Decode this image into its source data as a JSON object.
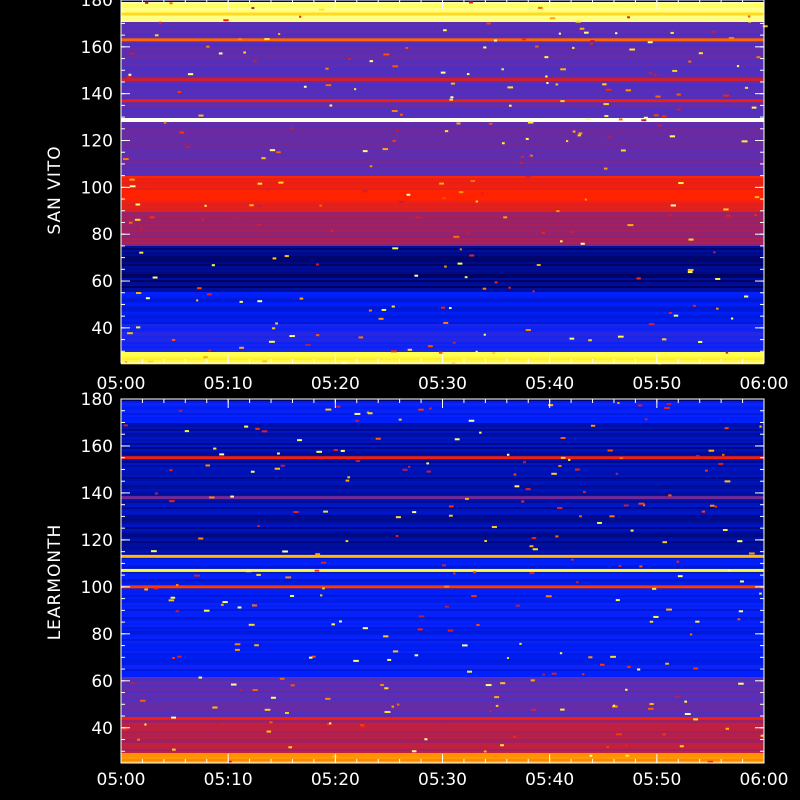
{
  "chart_data": [
    {
      "type": "heatmap",
      "station": "SAN VITO",
      "ylabel": "SAN VITO",
      "xlim": [
        "05:00",
        "06:00"
      ],
      "ylim": [
        25,
        180
      ],
      "xticks": [
        "05:00",
        "05:10",
        "05:20",
        "05:30",
        "05:40",
        "05:50",
        "06:00"
      ],
      "yticks": [
        40,
        60,
        80,
        100,
        120,
        140,
        160,
        180
      ],
      "colormap": [
        "#000050",
        "#0020ff",
        "#5030c0",
        "#a02060",
        "#ff2000",
        "#ffa000",
        "#ffff40",
        "#ffffff"
      ],
      "bands": [
        {
          "from": 25,
          "to": 30,
          "level": 0.85
        },
        {
          "from": 30,
          "to": 42,
          "level": 0.18
        },
        {
          "from": 42,
          "to": 56,
          "level": 0.12
        },
        {
          "from": 56,
          "to": 75,
          "level": 0.04
        },
        {
          "from": 75,
          "to": 90,
          "level": 0.42
        },
        {
          "from": 90,
          "to": 105,
          "level": 0.55
        },
        {
          "from": 105,
          "to": 128,
          "level": 0.32
        },
        {
          "from": 128,
          "to": 130,
          "level": 1.0
        },
        {
          "from": 130,
          "to": 171,
          "level": 0.3
        },
        {
          "from": 171,
          "to": 180,
          "level": 0.9
        }
      ],
      "lines": [
        {
          "y": 163,
          "level": 0.65
        },
        {
          "y": 146,
          "level": 0.5
        },
        {
          "y": 137,
          "level": 0.55
        },
        {
          "y": 174,
          "level": 0.8
        }
      ]
    },
    {
      "type": "heatmap",
      "station": "LEARMONTH",
      "ylabel": "LEARMONTH",
      "xlim": [
        "05:00",
        "06:00"
      ],
      "ylim": [
        25,
        180
      ],
      "xticks": [
        "05:00",
        "05:10",
        "05:20",
        "05:30",
        "05:40",
        "05:50",
        "06:00"
      ],
      "yticks": [
        40,
        60,
        80,
        100,
        120,
        140,
        160,
        180
      ],
      "colormap": [
        "#000050",
        "#0020ff",
        "#5030c0",
        "#a02060",
        "#ff2000",
        "#ffa000",
        "#ffff40",
        "#ffffff"
      ],
      "bands": [
        {
          "from": 25,
          "to": 30,
          "level": 0.7
        },
        {
          "from": 30,
          "to": 45,
          "level": 0.45
        },
        {
          "from": 45,
          "to": 62,
          "level": 0.3
        },
        {
          "from": 62,
          "to": 98,
          "level": 0.14
        },
        {
          "from": 98,
          "to": 112,
          "level": 0.12
        },
        {
          "from": 112,
          "to": 170,
          "level": 0.07
        },
        {
          "from": 170,
          "to": 180,
          "level": 0.15
        }
      ],
      "lines": [
        {
          "y": 100,
          "level": 0.6
        },
        {
          "y": 107,
          "level": 0.85
        },
        {
          "y": 113,
          "level": 0.75
        },
        {
          "y": 155,
          "level": 0.55
        },
        {
          "y": 138,
          "level": 0.35
        },
        {
          "y": 44,
          "level": 0.55
        }
      ]
    }
  ]
}
